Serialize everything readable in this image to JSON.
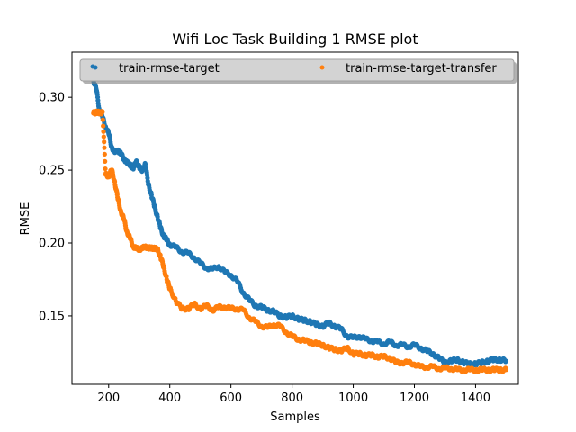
{
  "chart_data": {
    "type": "scatter",
    "title": "Wifi Loc Task Building 1 RMSE plot",
    "xlabel": "Samples",
    "ylabel": "RMSE",
    "xlim": [
      80,
      1540
    ],
    "ylim": [
      0.103,
      0.331
    ],
    "xticks": [
      200,
      400,
      600,
      800,
      1000,
      1200,
      1400
    ],
    "yticks": [
      0.15,
      0.2,
      0.25,
      0.3
    ],
    "ytick_labels": [
      "0.15",
      "0.20",
      "0.25",
      "0.30"
    ],
    "grid": false,
    "legend_placement": "top-center",
    "series": [
      {
        "name": "train-rmse-target",
        "color": "#1f77b4",
        "x": [
          150,
          160,
          170,
          180,
          190,
          200,
          210,
          220,
          230,
          240,
          250,
          260,
          270,
          280,
          290,
          300,
          310,
          320,
          330,
          340,
          350,
          360,
          370,
          380,
          390,
          400,
          420,
          440,
          460,
          480,
          500,
          520,
          540,
          560,
          580,
          600,
          620,
          640,
          660,
          680,
          700,
          720,
          740,
          760,
          780,
          800,
          820,
          840,
          860,
          880,
          900,
          920,
          940,
          960,
          980,
          1000,
          1020,
          1040,
          1060,
          1080,
          1100,
          1120,
          1140,
          1160,
          1180,
          1200,
          1220,
          1240,
          1260,
          1280,
          1300,
          1320,
          1340,
          1360,
          1380,
          1400,
          1420,
          1440,
          1460,
          1480,
          1500
        ],
        "y": [
          0.312,
          0.305,
          0.291,
          0.286,
          0.28,
          0.275,
          0.266,
          0.262,
          0.264,
          0.261,
          0.258,
          0.255,
          0.254,
          0.251,
          0.256,
          0.252,
          0.25,
          0.254,
          0.24,
          0.233,
          0.225,
          0.218,
          0.21,
          0.205,
          0.202,
          0.199,
          0.197,
          0.194,
          0.193,
          0.19,
          0.186,
          0.183,
          0.182,
          0.184,
          0.18,
          0.178,
          0.174,
          0.166,
          0.161,
          0.157,
          0.156,
          0.154,
          0.153,
          0.15,
          0.149,
          0.15,
          0.148,
          0.147,
          0.146,
          0.144,
          0.143,
          0.145,
          0.143,
          0.141,
          0.136,
          0.135,
          0.136,
          0.134,
          0.133,
          0.132,
          0.131,
          0.132,
          0.13,
          0.13,
          0.129,
          0.13,
          0.128,
          0.126,
          0.124,
          0.121,
          0.118,
          0.119,
          0.12,
          0.118,
          0.117,
          0.117,
          0.118,
          0.119,
          0.12,
          0.12,
          0.119
        ]
      },
      {
        "name": "train-rmse-target-transfer",
        "color": "#ff7f0e",
        "x": [
          150,
          160,
          170,
          180,
          190,
          200,
          210,
          220,
          230,
          240,
          250,
          260,
          270,
          280,
          290,
          300,
          310,
          320,
          330,
          340,
          350,
          360,
          370,
          380,
          390,
          400,
          420,
          440,
          460,
          480,
          500,
          520,
          540,
          560,
          580,
          600,
          620,
          640,
          660,
          680,
          700,
          720,
          740,
          760,
          780,
          800,
          820,
          840,
          860,
          880,
          900,
          920,
          940,
          960,
          980,
          1000,
          1020,
          1040,
          1060,
          1080,
          1100,
          1120,
          1140,
          1160,
          1180,
          1200,
          1220,
          1240,
          1260,
          1280,
          1300,
          1320,
          1340,
          1360,
          1380,
          1400,
          1420,
          1440,
          1460,
          1480,
          1500
        ],
        "y": [
          0.289,
          0.29,
          0.289,
          0.29,
          0.247,
          0.246,
          0.25,
          0.242,
          0.23,
          0.222,
          0.216,
          0.208,
          0.203,
          0.198,
          0.196,
          0.196,
          0.196,
          0.198,
          0.196,
          0.197,
          0.196,
          0.196,
          0.19,
          0.184,
          0.175,
          0.169,
          0.16,
          0.155,
          0.155,
          0.158,
          0.155,
          0.157,
          0.154,
          0.156,
          0.156,
          0.155,
          0.155,
          0.154,
          0.149,
          0.146,
          0.143,
          0.142,
          0.144,
          0.143,
          0.139,
          0.136,
          0.134,
          0.133,
          0.132,
          0.131,
          0.13,
          0.128,
          0.127,
          0.126,
          0.128,
          0.124,
          0.124,
          0.123,
          0.123,
          0.122,
          0.122,
          0.121,
          0.118,
          0.118,
          0.118,
          0.117,
          0.115,
          0.115,
          0.115,
          0.114,
          0.114,
          0.114,
          0.113,
          0.113,
          0.113,
          0.113,
          0.113,
          0.113,
          0.113,
          0.113,
          0.113
        ]
      }
    ]
  }
}
